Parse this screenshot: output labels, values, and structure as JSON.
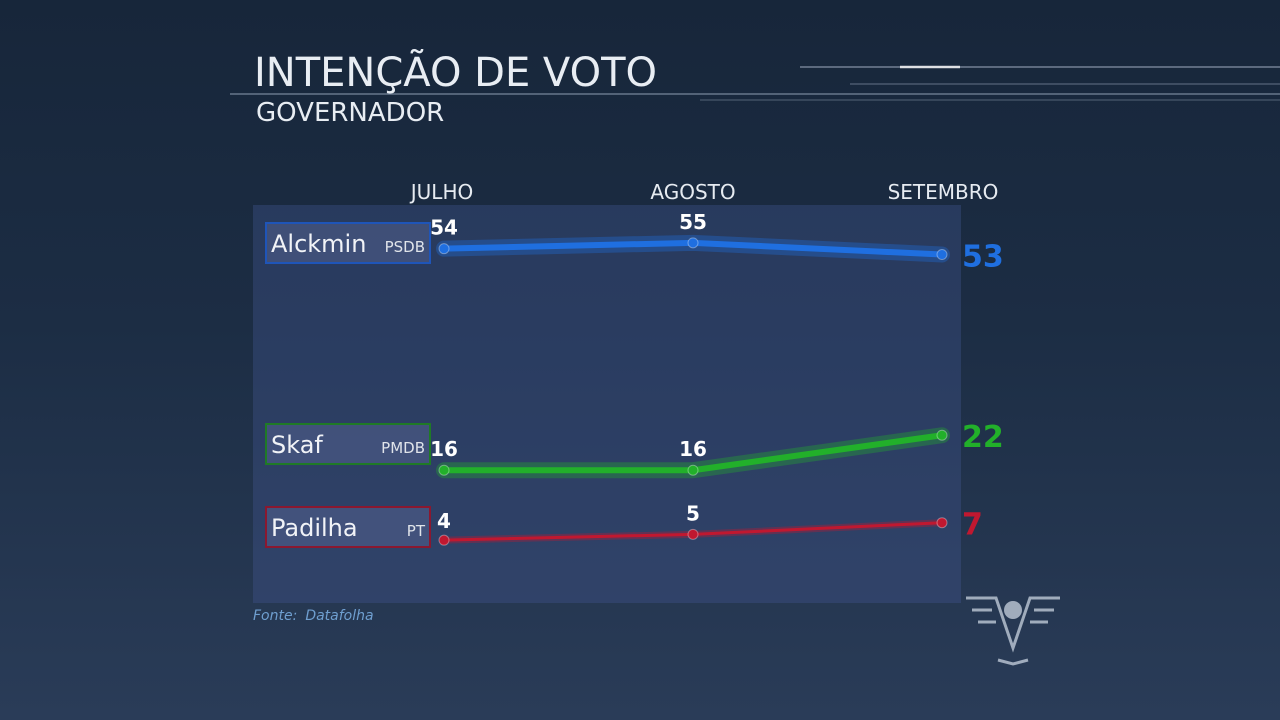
{
  "header": {
    "title": "INTENÇÃO DE VOTO",
    "subtitle": "GOVERNADOR"
  },
  "source": {
    "label": "Fonte:",
    "name": "Datafolha"
  },
  "colors": {
    "Alckmin": "#1f6fe0",
    "Skaf": "#22b02a",
    "Padilha": "#c01830"
  },
  "chart_data": {
    "type": "line",
    "title": "INTENÇÃO DE VOTO",
    "subtitle": "GOVERNADOR",
    "categories": [
      "JULHO",
      "AGOSTO",
      "SETEMBRO"
    ],
    "series": [
      {
        "name": "Alckmin",
        "party": "PSDB",
        "values": [
          54,
          55,
          53
        ]
      },
      {
        "name": "Skaf",
        "party": "PMDB",
        "values": [
          16,
          16,
          22
        ]
      },
      {
        "name": "Padilha",
        "party": "PT",
        "values": [
          4,
          5,
          7
        ]
      }
    ]
  }
}
